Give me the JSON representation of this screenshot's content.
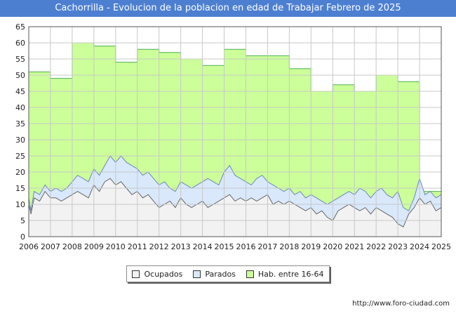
{
  "header": {
    "title": "Cachorrilla - Evolucion de la poblacion en edad de Trabajar Febrero de 2025"
  },
  "footer": {
    "url": "http://www.foro-ciudad.com"
  },
  "legend": {
    "items": [
      {
        "label": "Ocupados",
        "color": "#f2f2f2"
      },
      {
        "label": "Parados",
        "color": "#d9e8fb"
      },
      {
        "label": "Hab. entre 16-64",
        "color": "#ccff99"
      }
    ]
  },
  "chart_data": {
    "type": "area",
    "title": "Cachorrilla - Evolucion de la poblacion en edad de Trabajar Febrero de 2025",
    "xlabel": "",
    "ylabel": "",
    "x_ticks": [
      "2006",
      "2007",
      "2008",
      "2009",
      "2010",
      "2011",
      "2012",
      "2013",
      "2014",
      "2015",
      "2016",
      "2017",
      "2018",
      "2019",
      "2020",
      "2021",
      "2022",
      "2023",
      "2024",
      "2025"
    ],
    "xlim": [
      2006,
      2025
    ],
    "ylim": [
      0,
      65
    ],
    "y_ticks": [
      0,
      5,
      10,
      15,
      20,
      25,
      30,
      35,
      40,
      45,
      50,
      55,
      60,
      65
    ],
    "grid": true,
    "legend_position": "bottom",
    "colors": {
      "ocupados": "#f2f2f2",
      "parados": "#d9e8fb",
      "habitantes": "#ccff99",
      "line": "#666666",
      "hab_line": "#4caf50"
    },
    "series": [
      {
        "name": "Hab. entre 16-64",
        "step": true,
        "x": [
          2006,
          2007,
          2008,
          2009,
          2010,
          2011,
          2012,
          2013,
          2014,
          2015,
          2016,
          2017,
          2018,
          2019,
          2020,
          2021,
          2022,
          2023,
          2024
        ],
        "values": [
          51,
          49,
          60,
          59,
          54,
          58,
          57,
          55,
          53,
          58,
          56,
          56,
          52,
          45,
          47,
          45,
          50,
          48,
          14
        ]
      },
      {
        "name": "Parados",
        "x": [
          2006.0,
          2006.1,
          2006.25,
          2006.5,
          2006.75,
          2007.0,
          2007.25,
          2007.5,
          2007.75,
          2008.0,
          2008.25,
          2008.5,
          2008.75,
          2009.0,
          2009.25,
          2009.5,
          2009.75,
          2010.0,
          2010.25,
          2010.5,
          2010.75,
          2011.0,
          2011.25,
          2011.5,
          2011.75,
          2012.0,
          2012.25,
          2012.5,
          2012.75,
          2013.0,
          2013.25,
          2013.5,
          2013.75,
          2014.0,
          2014.25,
          2014.5,
          2014.75,
          2015.0,
          2015.25,
          2015.5,
          2015.75,
          2016.0,
          2016.25,
          2016.5,
          2016.75,
          2017.0,
          2017.25,
          2017.5,
          2017.75,
          2018.0,
          2018.25,
          2018.5,
          2018.75,
          2019.0,
          2019.25,
          2019.5,
          2019.75,
          2020.0,
          2020.25,
          2020.5,
          2020.75,
          2021.0,
          2021.25,
          2021.5,
          2021.75,
          2022.0,
          2022.25,
          2022.5,
          2022.75,
          2023.0,
          2023.25,
          2023.5,
          2023.75,
          2024.0,
          2024.25,
          2024.5,
          2024.75,
          2025.0
        ],
        "values": [
          12,
          8,
          14,
          13,
          16,
          14,
          15,
          14,
          15,
          17,
          19,
          18,
          17,
          21,
          19,
          22,
          25,
          23,
          25,
          23,
          22,
          21,
          19,
          20,
          18,
          16,
          17,
          15,
          14,
          17,
          16,
          15,
          16,
          17,
          18,
          17,
          16,
          20,
          22,
          19,
          18,
          17,
          16,
          18,
          19,
          17,
          16,
          15,
          14,
          15,
          13,
          14,
          12,
          13,
          12,
          11,
          10,
          11,
          12,
          13,
          14,
          13,
          15,
          14,
          12,
          14,
          15,
          13,
          12,
          14,
          9,
          8,
          12,
          18,
          13,
          14,
          12,
          13
        ]
      },
      {
        "name": "Ocupados",
        "x": [
          2006.0,
          2006.1,
          2006.25,
          2006.5,
          2006.75,
          2007.0,
          2007.25,
          2007.5,
          2007.75,
          2008.0,
          2008.25,
          2008.5,
          2008.75,
          2009.0,
          2009.25,
          2009.5,
          2009.75,
          2010.0,
          2010.25,
          2010.5,
          2010.75,
          2011.0,
          2011.25,
          2011.5,
          2011.75,
          2012.0,
          2012.25,
          2012.5,
          2012.75,
          2013.0,
          2013.25,
          2013.5,
          2013.75,
          2014.0,
          2014.25,
          2014.5,
          2014.75,
          2015.0,
          2015.25,
          2015.5,
          2015.75,
          2016.0,
          2016.25,
          2016.5,
          2016.75,
          2017.0,
          2017.25,
          2017.5,
          2017.75,
          2018.0,
          2018.25,
          2018.5,
          2018.75,
          2019.0,
          2019.25,
          2019.5,
          2019.75,
          2020.0,
          2020.25,
          2020.5,
          2020.75,
          2021.0,
          2021.25,
          2021.5,
          2021.75,
          2022.0,
          2022.25,
          2022.5,
          2022.75,
          2023.0,
          2023.25,
          2023.5,
          2023.75,
          2024.0,
          2024.25,
          2024.5,
          2024.75,
          2025.0
        ],
        "values": [
          10,
          7,
          12,
          11,
          14,
          12,
          12,
          11,
          12,
          13,
          14,
          13,
          12,
          16,
          14,
          17,
          18,
          16,
          17,
          15,
          13,
          14,
          12,
          13,
          11,
          9,
          10,
          11,
          9,
          12,
          10,
          9,
          10,
          11,
          9,
          10,
          11,
          12,
          13,
          11,
          12,
          11,
          12,
          11,
          12,
          13,
          10,
          11,
          10,
          11,
          10,
          9,
          8,
          9,
          7,
          8,
          6,
          5,
          8,
          9,
          10,
          9,
          8,
          9,
          7,
          9,
          8,
          7,
          6,
          4,
          3,
          7,
          9,
          12,
          10,
          11,
          8,
          9
        ]
      }
    ]
  }
}
